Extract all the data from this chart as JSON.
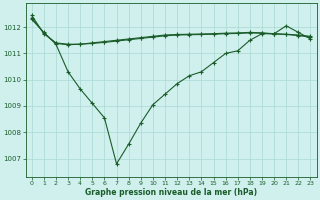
{
  "line1": {
    "x": [
      0,
      1,
      2,
      3,
      4,
      5,
      6,
      7,
      8,
      9,
      10,
      11,
      12,
      13,
      14,
      15,
      16,
      17,
      18,
      19,
      20,
      21,
      22,
      23
    ],
    "y": [
      1012.45,
      1011.75,
      1011.4,
      1011.35,
      1011.35,
      1011.4,
      1011.45,
      1011.5,
      1011.55,
      1011.6,
      1011.65,
      1011.7,
      1011.72,
      1011.73,
      1011.74,
      1011.75,
      1011.77,
      1011.78,
      1011.8,
      1011.78,
      1011.75,
      1011.73,
      1011.7,
      1011.65
    ]
  },
  "line2": {
    "x": [
      0,
      1,
      2,
      3,
      4,
      5,
      6,
      7,
      8,
      9,
      10,
      11,
      12,
      13,
      14,
      15,
      16,
      17,
      18,
      19,
      20,
      21,
      22,
      23
    ],
    "y": [
      1012.3,
      1011.8,
      1011.35,
      1010.3,
      1009.65,
      1009.1,
      1008.55,
      1006.8,
      1007.55,
      1008.35,
      1009.05,
      1009.45,
      1009.85,
      1010.15,
      1010.3,
      1010.65,
      1011.0,
      1011.1,
      1011.5,
      1011.75,
      1011.75,
      1012.05,
      1011.8,
      1011.55
    ]
  },
  "line3": {
    "x": [
      0,
      1,
      2,
      3,
      4,
      5,
      6,
      7,
      8,
      9,
      10,
      11,
      12,
      13,
      14,
      15,
      16,
      17,
      18,
      19,
      20,
      21,
      22,
      23
    ],
    "y": [
      1012.35,
      1011.78,
      1011.38,
      1011.33,
      1011.35,
      1011.38,
      1011.42,
      1011.47,
      1011.52,
      1011.57,
      1011.62,
      1011.67,
      1011.7,
      1011.71,
      1011.72,
      1011.73,
      1011.75,
      1011.76,
      1011.78,
      1011.77,
      1011.74,
      1011.72,
      1011.68,
      1011.62
    ]
  },
  "bg_color": "#d0f0ee",
  "grid_color": "#a8d8d4",
  "line_color": "#1a5c2a",
  "marker": "+",
  "xlabel": "Graphe pression niveau de la mer (hPa)",
  "xticks": [
    0,
    1,
    2,
    3,
    4,
    5,
    6,
    7,
    8,
    9,
    10,
    11,
    12,
    13,
    14,
    15,
    16,
    17,
    18,
    19,
    20,
    21,
    22,
    23
  ],
  "yticks": [
    1007,
    1008,
    1009,
    1010,
    1011,
    1012
  ],
  "ylim": [
    1006.3,
    1012.9
  ],
  "xlim": [
    -0.5,
    23.5
  ]
}
